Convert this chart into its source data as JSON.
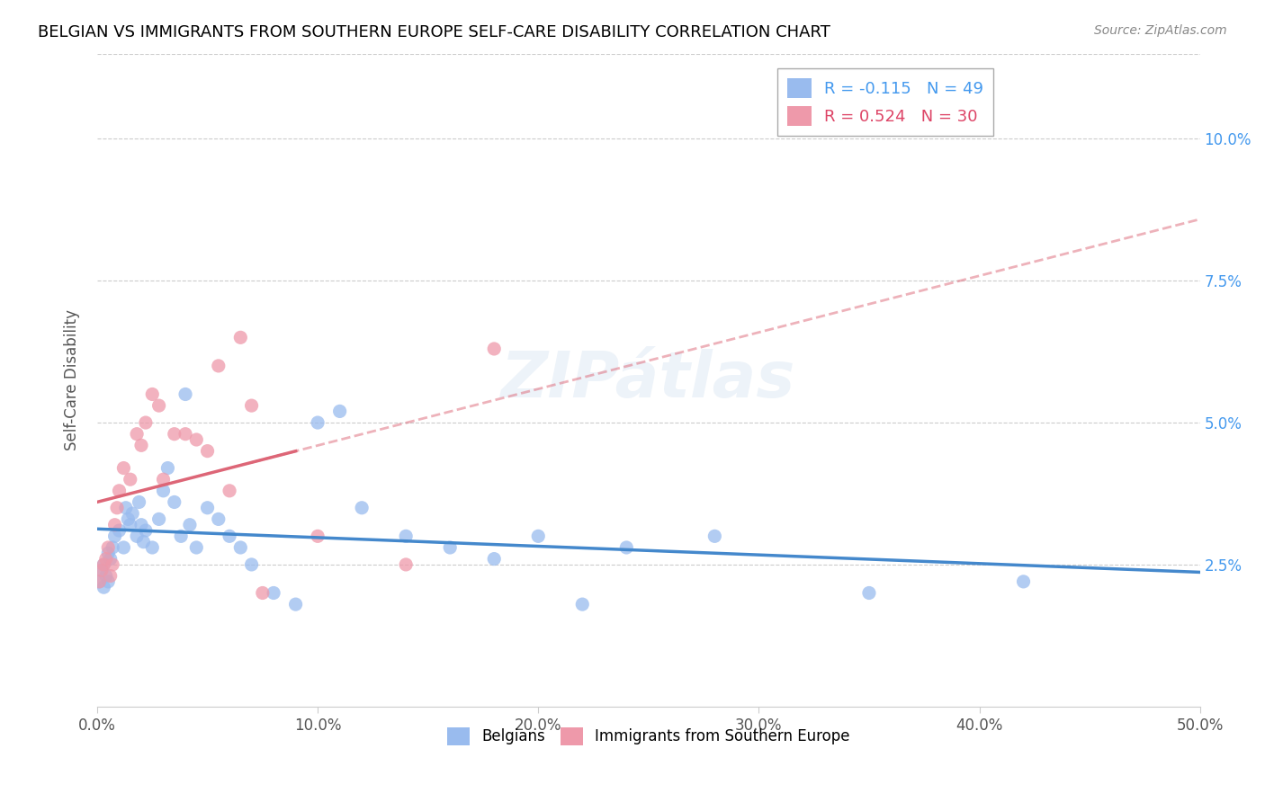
{
  "title": "BELGIAN VS IMMIGRANTS FROM SOUTHERN EUROPE SELF-CARE DISABILITY CORRELATION CHART",
  "source": "Source: ZipAtlas.com",
  "xlabel": "",
  "ylabel": "Self-Care Disability",
  "xlim": [
    0.0,
    0.5
  ],
  "ylim": [
    0.0,
    0.115
  ],
  "xticks": [
    0.0,
    0.1,
    0.2,
    0.3,
    0.4,
    0.5
  ],
  "xticklabels": [
    "0.0%",
    "10.0%",
    "20.0%",
    "30.0%",
    "40.0%",
    "50.0%"
  ],
  "yticks": [
    0.025,
    0.05,
    0.075,
    0.1
  ],
  "yticklabels": [
    "2.5%",
    "5.0%",
    "7.5%",
    "10.0%"
  ],
  "legend_labels": [
    "Belgians",
    "Immigrants from Southern Europe"
  ],
  "r_blue": -0.115,
  "n_blue": 49,
  "r_pink": 0.524,
  "n_pink": 30,
  "blue_color": "#99bbee",
  "pink_color": "#ee99aa",
  "blue_line_color": "#4488cc",
  "pink_line_color": "#dd6677",
  "watermark": "ZIPátlas",
  "blue_points_x": [
    0.001,
    0.002,
    0.003,
    0.003,
    0.004,
    0.005,
    0.005,
    0.006,
    0.007,
    0.008,
    0.01,
    0.012,
    0.013,
    0.014,
    0.015,
    0.016,
    0.018,
    0.019,
    0.02,
    0.021,
    0.022,
    0.025,
    0.028,
    0.03,
    0.032,
    0.035,
    0.038,
    0.04,
    0.042,
    0.045,
    0.05,
    0.055,
    0.06,
    0.065,
    0.07,
    0.08,
    0.09,
    0.1,
    0.11,
    0.12,
    0.14,
    0.16,
    0.18,
    0.2,
    0.22,
    0.24,
    0.28,
    0.35,
    0.42
  ],
  "blue_points_y": [
    0.022,
    0.024,
    0.021,
    0.025,
    0.023,
    0.027,
    0.022,
    0.026,
    0.028,
    0.03,
    0.031,
    0.028,
    0.035,
    0.033,
    0.032,
    0.034,
    0.03,
    0.036,
    0.032,
    0.029,
    0.031,
    0.028,
    0.033,
    0.038,
    0.042,
    0.036,
    0.03,
    0.055,
    0.032,
    0.028,
    0.035,
    0.033,
    0.03,
    0.028,
    0.025,
    0.02,
    0.018,
    0.05,
    0.052,
    0.035,
    0.03,
    0.028,
    0.026,
    0.03,
    0.018,
    0.028,
    0.03,
    0.02,
    0.022
  ],
  "pink_points_x": [
    0.001,
    0.002,
    0.003,
    0.004,
    0.005,
    0.006,
    0.007,
    0.008,
    0.009,
    0.01,
    0.012,
    0.015,
    0.018,
    0.02,
    0.022,
    0.025,
    0.028,
    0.03,
    0.035,
    0.04,
    0.045,
    0.05,
    0.055,
    0.06,
    0.065,
    0.07,
    0.075,
    0.1,
    0.14,
    0.18
  ],
  "pink_points_y": [
    0.022,
    0.024,
    0.025,
    0.026,
    0.028,
    0.023,
    0.025,
    0.032,
    0.035,
    0.038,
    0.042,
    0.04,
    0.048,
    0.046,
    0.05,
    0.055,
    0.053,
    0.04,
    0.048,
    0.048,
    0.047,
    0.045,
    0.06,
    0.038,
    0.065,
    0.053,
    0.02,
    0.03,
    0.025,
    0.063
  ]
}
